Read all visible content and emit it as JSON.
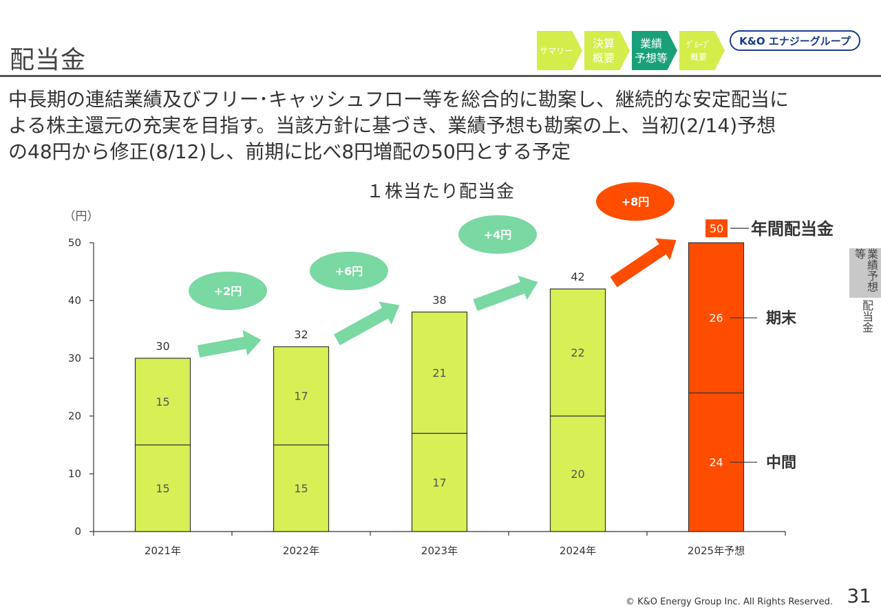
{
  "header": {
    "title": "配当金",
    "nav": [
      {
        "label": "サマリー",
        "color": "#d4ed4a",
        "size": "small"
      },
      {
        "label": "決算\n概要",
        "color": "#d4ed4a",
        "size": "normal"
      },
      {
        "label": "業績\n予想等",
        "color": "#1aa079",
        "size": "normal"
      },
      {
        "label": "ｸﾞﾙｰﾌﾟ\n概要",
        "color": "#d4ed4a",
        "size": "small"
      }
    ],
    "logo": "K&O エナジーグループ"
  },
  "lead": [
    "中長期の連結業績及びフリー･キャッシュフロー等を総合的に勘案し、継続的な安定配当に",
    "よる株主還元の充実を目指す。当該方針に基づき、業績予想も勘案の上、当初(2/14)予想",
    "の48円から修正(8/12)し、前期に比べ8円増配の50円とする予定"
  ],
  "side_tab": {
    "main": "業績予想等",
    "sub": "配当金"
  },
  "footer": {
    "copyright": "© K&O Energy Group Inc. All Rights Reserved.",
    "page": "31"
  },
  "colors": {
    "bar": "#d8ef55",
    "forecast": "#ff4d00",
    "increase": "#7ad8a2",
    "increase_forecast": "#ff4d00"
  },
  "chart_data": {
    "type": "bar",
    "title": "１株当たり配当金",
    "unit_label": "（円）",
    "categories": [
      "2021年",
      "2022年",
      "2023年",
      "2024年",
      "2025年予想"
    ],
    "series": [
      {
        "name": "中間",
        "values": [
          15,
          15,
          17,
          20,
          24
        ]
      },
      {
        "name": "期末",
        "values": [
          15,
          17,
          21,
          22,
          26
        ]
      }
    ],
    "totals": [
      30,
      32,
      38,
      42,
      50
    ],
    "annual_label": "年間配当金",
    "increases": [
      "+2円",
      "+6円",
      "+4円",
      "+8円"
    ],
    "ylim": [
      0,
      50
    ],
    "yticks": [
      0,
      10,
      20,
      30,
      40,
      50
    ]
  }
}
